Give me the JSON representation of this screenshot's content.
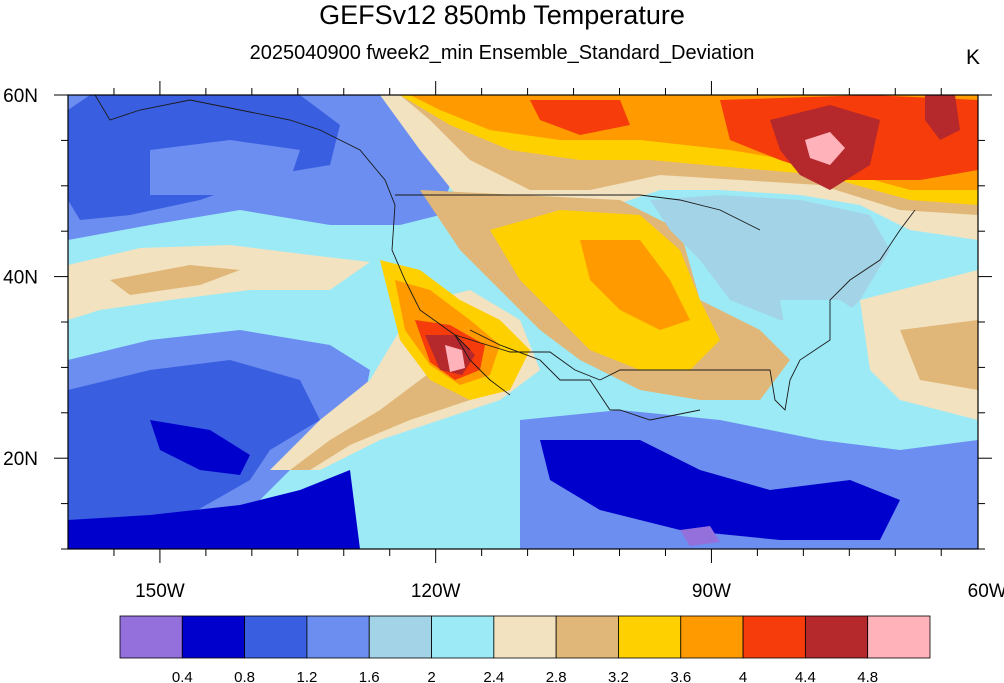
{
  "map": {
    "title": "GEFSv12 850mb Temperature",
    "subtitle": "2025040900 fweek2_min Ensemble_Standard_Deviation",
    "units": "K",
    "lat_labels": [
      {
        "text": "60N",
        "lat": 60
      },
      {
        "text": "40N",
        "lat": 40
      },
      {
        "text": "20N",
        "lat": 20
      }
    ],
    "lon_labels": [
      {
        "text": "150W",
        "lon": -150
      },
      {
        "text": "120W",
        "lon": -120
      },
      {
        "text": "90W",
        "lon": -90
      },
      {
        "text": "60W",
        "lon": -60
      }
    ],
    "extent": {
      "lon_min": -160,
      "lon_max": -61,
      "lat_min": 10,
      "lat_max": 60
    }
  },
  "colorbar": {
    "colors": [
      "#9370db",
      "#0000cd",
      "#3a5ee0",
      "#6b8ef0",
      "#a3d3e6",
      "#9ceaf6",
      "#f2e2bf",
      "#e0b778",
      "#ffd000",
      "#ff9a00",
      "#f53c0a",
      "#b5282c",
      "#ffb2b9"
    ],
    "labels": [
      "0.4",
      "0.8",
      "1.2",
      "1.6",
      "2",
      "2.4",
      "2.8",
      "3.2",
      "3.6",
      "4",
      "4.4",
      "4.8"
    ]
  },
  "regions": [
    {
      "name": "pacific-low-band",
      "color": "#0000cd"
    },
    {
      "name": "north-pacific-blue",
      "color": "#6b8ef0"
    },
    {
      "name": "west-canada-warm",
      "color": "#ff9a00"
    },
    {
      "name": "hudson-bay-max",
      "color": "#b5282c"
    },
    {
      "name": "baja-max",
      "color": "#ffb2b9"
    },
    {
      "name": "great-plains-warm",
      "color": "#ffd000"
    },
    {
      "name": "great-lakes-cool",
      "color": "#a3d3e6"
    }
  ]
}
